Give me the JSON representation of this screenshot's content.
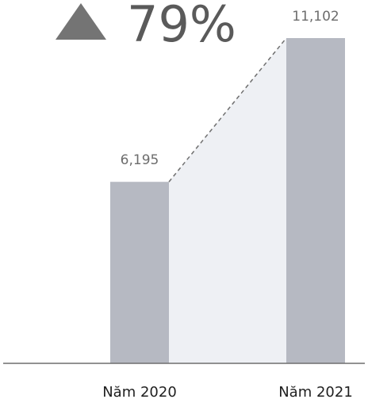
{
  "headline": {
    "change_value": "79%",
    "direction": "up",
    "icon": "triangle-up-icon",
    "color": "#747474"
  },
  "chart_data": {
    "type": "bar",
    "categories": [
      "Năm 2020",
      "Năm 2021"
    ],
    "values": [
      6195,
      11102
    ],
    "value_labels": [
      "6,195",
      "11,102"
    ],
    "ylim": [
      0,
      11102
    ],
    "grid": false,
    "legend": "none",
    "connector": "dashed",
    "colors": {
      "bar": "#b6b9c2",
      "connector_fill": "#eef0f4",
      "connector_line": "#6f6f6f",
      "axis": "#6f6f6f"
    }
  }
}
